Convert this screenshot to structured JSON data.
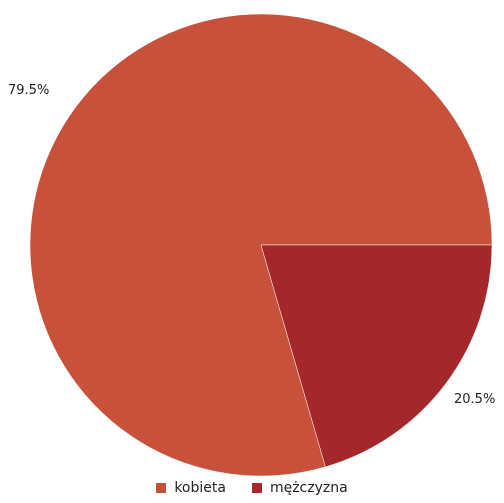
{
  "chart_data": {
    "type": "pie",
    "categories": [
      "kobieta",
      "mężczyzna"
    ],
    "values": [
      79.5,
      20.5
    ],
    "labels": [
      "79.5%",
      "20.5%"
    ],
    "colors": [
      "#c8513b",
      "#a42829"
    ],
    "start_angle_deg": 0,
    "direction": "counterclockwise",
    "legend_position": "bottom"
  }
}
